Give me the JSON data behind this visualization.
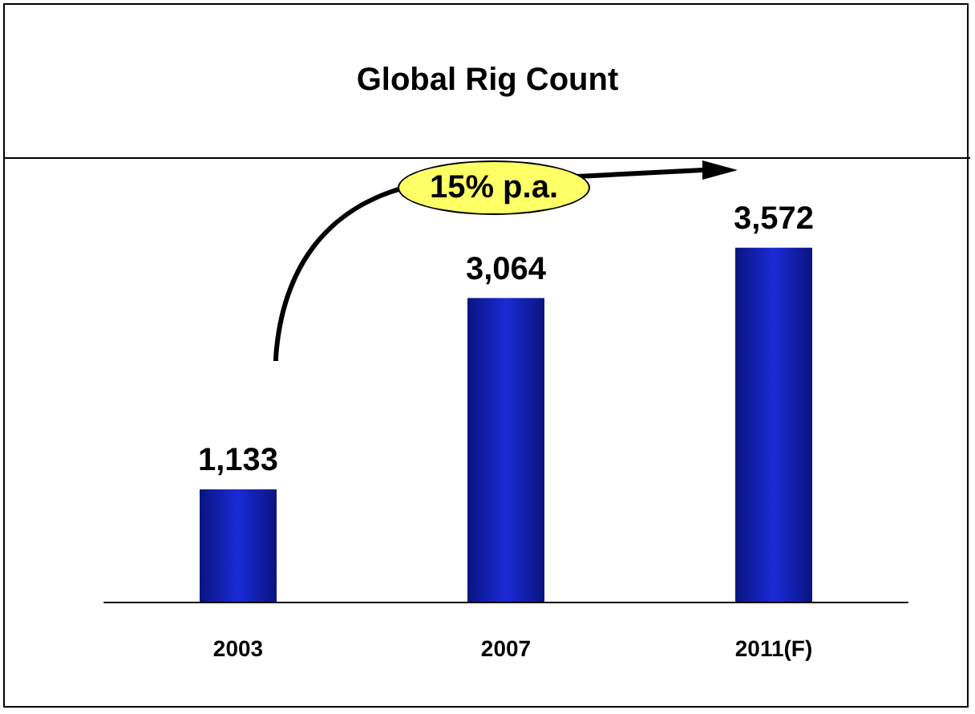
{
  "chart_data": {
    "type": "bar",
    "title": "Global Rig Count",
    "categories": [
      "2003",
      "2007",
      "2011(F)"
    ],
    "values": [
      1133,
      3064,
      3572
    ],
    "color": "#1a2bd6",
    "value_labels": [
      "1,133",
      "3,064",
      "3,572"
    ],
    "annotations": [
      "15% p.a."
    ]
  }
}
